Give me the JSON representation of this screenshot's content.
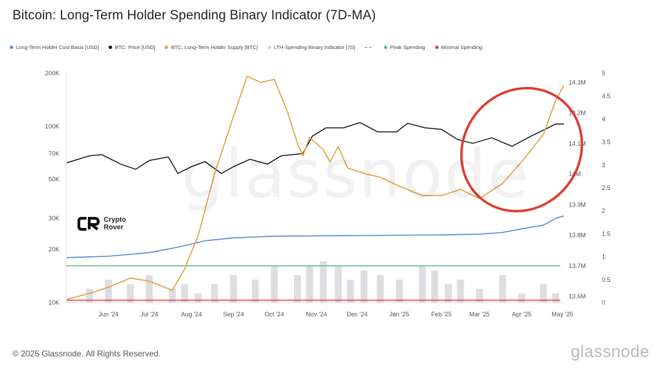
{
  "title": "Bitcoin: Long-Term Holder Spending Binary Indicator (7D-MA)",
  "legend": [
    {
      "label": "Long-Term Holder Cost Basis [USD]",
      "color": "#5b8fd0",
      "marker": "dot"
    },
    {
      "label": "BTC: Price [USD]",
      "color": "#111111",
      "marker": "dot"
    },
    {
      "label": "BTC: Long-Term Holder Supply [BTC]",
      "color": "#e0a23c",
      "marker": "dot"
    },
    {
      "label": "LTH-Spending Binary Indicator [7D]",
      "color": "#cfcfd6",
      "marker": "dot"
    },
    {
      "label": "",
      "color": "#777777",
      "marker": "dash"
    },
    {
      "label": "Peak Spending",
      "color": "#5cc18a",
      "marker": "dot"
    },
    {
      "label": "Minimal Spending",
      "color": "#d9463f",
      "marker": "dot"
    }
  ],
  "footer": "© 2025 Glassnode. All Rights Reserved.",
  "brand": "glassnode",
  "watermark": "glassnode",
  "crypto_rover": {
    "line1": "Crypto",
    "line2": "Rover"
  },
  "annotation_color": "#e03a2f",
  "chart_data": {
    "type": "line",
    "title": "Bitcoin: Long-Term Holder Spending Binary Indicator (7D-MA)",
    "x_ticks": [
      "Jun '24",
      "Jul '24",
      "Aug '24",
      "Sep '24",
      "Oct '24",
      "Nov '24",
      "Dec '24",
      "Jan '25",
      "Feb '25",
      "Mar '25",
      "Apr '25",
      "May '25"
    ],
    "x_range": [
      "2024-05-15",
      "2025-05-16"
    ],
    "y_left": {
      "scale": "log",
      "range": [
        10000,
        200000
      ],
      "ticks": [
        {
          "value": 10000,
          "label": "10K"
        },
        {
          "value": 20000,
          "label": "20K"
        },
        {
          "value": 30000,
          "label": "30K"
        },
        {
          "value": 50000,
          "label": "50K"
        },
        {
          "value": 70000,
          "label": "70K"
        },
        {
          "value": 100000,
          "label": "100K"
        },
        {
          "value": 200000,
          "label": "200K"
        }
      ]
    },
    "y_right_supply": {
      "range": [
        13580000,
        14330000
      ],
      "ticks": [
        {
          "value": 13600000,
          "label": "13.6M"
        },
        {
          "value": 13700000,
          "label": "13.7M"
        },
        {
          "value": 13800000,
          "label": "13.8M"
        },
        {
          "value": 13900000,
          "label": "13.9M"
        },
        {
          "value": 14000000,
          "label": "14M"
        },
        {
          "value": 14100000,
          "label": "14.1M"
        },
        {
          "value": 14200000,
          "label": "14.2M"
        },
        {
          "value": 14300000,
          "label": "14.3M"
        }
      ]
    },
    "y_right_indicator": {
      "range": [
        0,
        5
      ],
      "ticks": [
        {
          "value": 0,
          "label": "0"
        },
        {
          "value": 0.5,
          "label": "0.5"
        },
        {
          "value": 1,
          "label": "1"
        },
        {
          "value": 1.5,
          "label": "1.5"
        },
        {
          "value": 2,
          "label": "2"
        },
        {
          "value": 2.5,
          "label": "2.5"
        },
        {
          "value": 3,
          "label": "3"
        },
        {
          "value": 3.5,
          "label": "3.5"
        },
        {
          "value": 4,
          "label": "4"
        },
        {
          "value": 4.5,
          "label": "4.5"
        },
        {
          "value": 5,
          "label": "5"
        }
      ]
    },
    "thresholds": [
      {
        "name": "Peak Spending",
        "value": 0.8,
        "color": "#5cc18a"
      },
      {
        "name": "Minimal Spending",
        "value": 0.05,
        "color": "#d9463f"
      }
    ],
    "series": [
      {
        "name": "BTC: Price [USD]",
        "axis": "left",
        "color": "#111111",
        "x": [
          "2024-05-15",
          "2024-06-01",
          "2024-06-10",
          "2024-06-24",
          "2024-07-05",
          "2024-07-15",
          "2024-07-29",
          "2024-08-05",
          "2024-08-15",
          "2024-08-25",
          "2024-09-06",
          "2024-09-15",
          "2024-09-27",
          "2024-10-10",
          "2024-10-20",
          "2024-11-05",
          "2024-11-12",
          "2024-11-22",
          "2024-12-05",
          "2024-12-17",
          "2024-12-30",
          "2025-01-13",
          "2025-01-21",
          "2025-02-03",
          "2025-02-15",
          "2025-02-27",
          "2025-03-10",
          "2025-03-24",
          "2025-04-08",
          "2025-04-22",
          "2025-05-01",
          "2025-05-10",
          "2025-05-16"
        ],
        "values": [
          62000,
          68000,
          69000,
          61000,
          57000,
          64000,
          67000,
          54000,
          59000,
          63000,
          54000,
          59000,
          65000,
          61000,
          68000,
          70000,
          88000,
          98000,
          98000,
          105000,
          93000,
          93000,
          104000,
          98000,
          96000,
          84000,
          80000,
          86000,
          77000,
          88000,
          95000,
          103000,
          103000
        ]
      },
      {
        "name": "Long-Term Holder Cost Basis [USD]",
        "axis": "left",
        "color": "#5b8fd0",
        "x": [
          "2024-05-15",
          "2024-06-15",
          "2024-07-15",
          "2024-08-05",
          "2024-08-25",
          "2024-09-15",
          "2024-10-15",
          "2024-11-15",
          "2024-12-15",
          "2025-01-15",
          "2025-02-15",
          "2025-03-15",
          "2025-04-01",
          "2025-04-15",
          "2025-05-01",
          "2025-05-10",
          "2025-05-16"
        ],
        "values": [
          18000,
          18300,
          19200,
          20600,
          22400,
          23300,
          23800,
          23900,
          24000,
          24100,
          24200,
          24400,
          25000,
          26200,
          27500,
          30000,
          31000
        ]
      },
      {
        "name": "BTC: Long-Term Holder Supply [BTC]",
        "axis": "right_supply",
        "color": "#e0a23c",
        "x": [
          "2024-05-15",
          "2024-06-01",
          "2024-06-15",
          "2024-07-01",
          "2024-07-15",
          "2024-08-01",
          "2024-08-10",
          "2024-08-20",
          "2024-09-01",
          "2024-09-15",
          "2024-09-25",
          "2024-10-05",
          "2024-10-15",
          "2024-10-25",
          "2024-11-01",
          "2024-11-05",
          "2024-11-10",
          "2024-11-20",
          "2024-11-25",
          "2024-12-01",
          "2024-12-08",
          "2024-12-15",
          "2024-12-22",
          "2025-01-01",
          "2025-01-15",
          "2025-02-01",
          "2025-02-15",
          "2025-03-01",
          "2025-03-15",
          "2025-04-01",
          "2025-04-15",
          "2025-05-01",
          "2025-05-10",
          "2025-05-16"
        ],
        "values": [
          13590000,
          13610000,
          13630000,
          13660000,
          13650000,
          13620000,
          13690000,
          13800000,
          14000000,
          14190000,
          14320000,
          14300000,
          14310000,
          14200000,
          14100000,
          14060000,
          14120000,
          14080000,
          14040000,
          14090000,
          14020000,
          14010000,
          14000000,
          13990000,
          13960000,
          13930000,
          13930000,
          13950000,
          13920000,
          13970000,
          14040000,
          14130000,
          14240000,
          14290000
        ]
      },
      {
        "name": "LTH-Spending Binary Indicator [7D]",
        "axis": "right_indicator",
        "color": "#cfcfd6",
        "type": "bar",
        "x": [
          "2024-06-01",
          "2024-06-15",
          "2024-07-01",
          "2024-07-15",
          "2024-08-01",
          "2024-08-10",
          "2024-08-20",
          "2024-09-01",
          "2024-09-15",
          "2024-10-01",
          "2024-10-15",
          "2024-11-01",
          "2024-11-10",
          "2024-11-20",
          "2024-12-01",
          "2024-12-10",
          "2024-12-20",
          "2025-01-01",
          "2025-01-15",
          "2025-02-01",
          "2025-02-10",
          "2025-02-20",
          "2025-03-01",
          "2025-03-15",
          "2025-04-01",
          "2025-04-15",
          "2025-05-01",
          "2025-05-10"
        ],
        "values": [
          0.3,
          0.5,
          0.4,
          0.6,
          0.3,
          0.4,
          0.2,
          0.4,
          0.6,
          0.5,
          0.8,
          0.6,
          0.8,
          0.9,
          0.8,
          0.5,
          0.7,
          0.6,
          0.5,
          0.8,
          0.7,
          0.4,
          0.5,
          0.3,
          0.6,
          0.2,
          0.4,
          0.2
        ]
      }
    ]
  }
}
